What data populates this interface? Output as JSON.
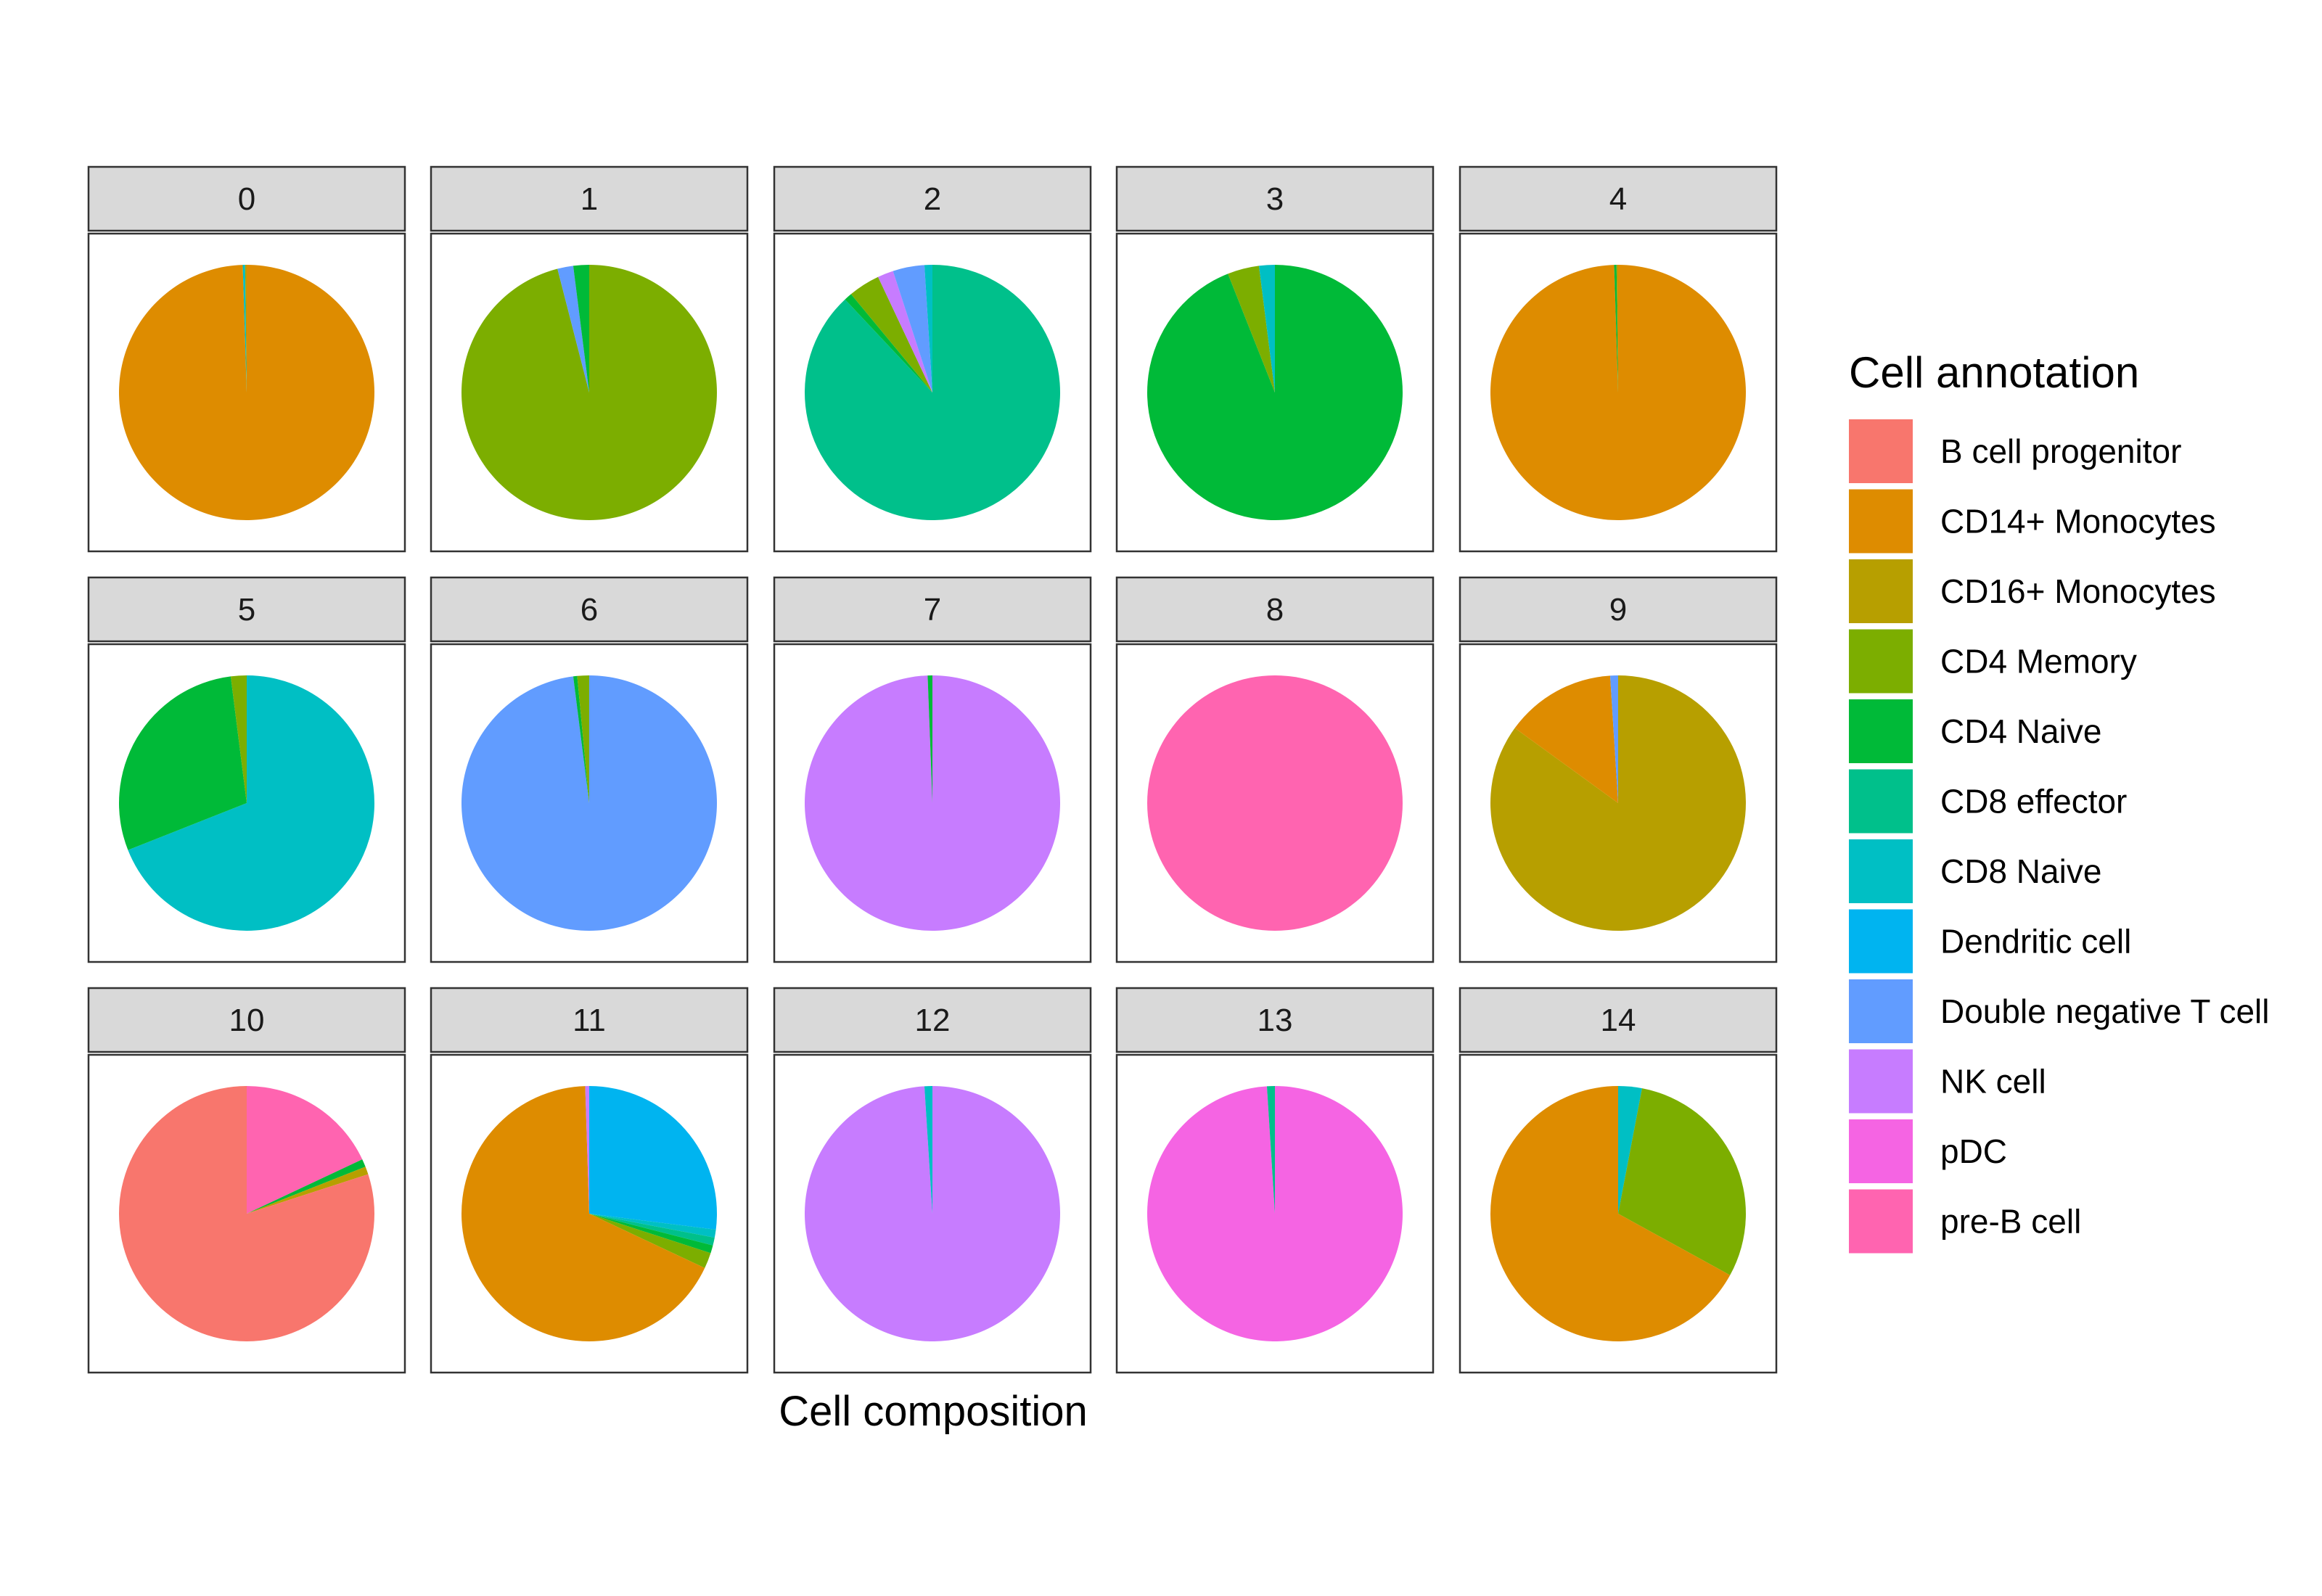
{
  "chart_data": {
    "type": "pie",
    "xlabel": "Cell composition",
    "legend": {
      "title": "Cell annotation",
      "placement": "right",
      "categories": [
        {
          "name": "B cell progenitor",
          "color": "#F8766D"
        },
        {
          "name": "CD14+ Monocytes",
          "color": "#DE8C00"
        },
        {
          "name": "CD16+ Monocytes",
          "color": "#B79F00"
        },
        {
          "name": "CD4 Memory",
          "color": "#7CAE00"
        },
        {
          "name": "CD4 Naive",
          "color": "#00BA38"
        },
        {
          "name": "CD8 effector",
          "color": "#00C08B"
        },
        {
          "name": "CD8 Naive",
          "color": "#00BFC4"
        },
        {
          "name": "Dendritic cell",
          "color": "#00B4F0"
        },
        {
          "name": "Double negative T cell",
          "color": "#619CFF"
        },
        {
          "name": "NK cell",
          "color": "#C77CFF"
        },
        {
          "name": "pDC",
          "color": "#F564E3"
        },
        {
          "name": "pre-B cell",
          "color": "#FF64B0"
        }
      ]
    },
    "panels": [
      {
        "label": "0",
        "slices": [
          {
            "category": "CD14+ Monocytes",
            "fraction": 0.995
          },
          {
            "category": "CD8 Naive",
            "fraction": 0.003
          },
          {
            "category": "CD16+ Monocytes",
            "fraction": 0.002
          }
        ]
      },
      {
        "label": "1",
        "slices": [
          {
            "category": "CD4 Memory",
            "fraction": 0.96
          },
          {
            "category": "Double negative T cell",
            "fraction": 0.02
          },
          {
            "category": "CD4 Naive",
            "fraction": 0.02
          }
        ]
      },
      {
        "label": "2",
        "slices": [
          {
            "category": "CD8 effector",
            "fraction": 0.88
          },
          {
            "category": "CD4 Naive",
            "fraction": 0.01
          },
          {
            "category": "CD4 Memory",
            "fraction": 0.04
          },
          {
            "category": "NK cell",
            "fraction": 0.02
          },
          {
            "category": "Double negative T cell",
            "fraction": 0.04
          },
          {
            "category": "CD8 Naive",
            "fraction": 0.01
          }
        ]
      },
      {
        "label": "3",
        "slices": [
          {
            "category": "CD4 Naive",
            "fraction": 0.94
          },
          {
            "category": "CD4 Memory",
            "fraction": 0.04
          },
          {
            "category": "CD8 Naive",
            "fraction": 0.02
          }
        ]
      },
      {
        "label": "4",
        "slices": [
          {
            "category": "CD14+ Monocytes",
            "fraction": 0.995
          },
          {
            "category": "CD4 Naive",
            "fraction": 0.003
          },
          {
            "category": "CD16+ Monocytes",
            "fraction": 0.002
          }
        ]
      },
      {
        "label": "5",
        "slices": [
          {
            "category": "CD8 Naive",
            "fraction": 0.69
          },
          {
            "category": "CD4 Naive",
            "fraction": 0.29
          },
          {
            "category": "CD4 Memory",
            "fraction": 0.02
          }
        ]
      },
      {
        "label": "6",
        "slices": [
          {
            "category": "Double negative T cell",
            "fraction": 0.98
          },
          {
            "category": "CD4 Naive",
            "fraction": 0.005
          },
          {
            "category": "CD4 Memory",
            "fraction": 0.015
          }
        ]
      },
      {
        "label": "7",
        "slices": [
          {
            "category": "NK cell",
            "fraction": 0.994
          },
          {
            "category": "CD4 Naive",
            "fraction": 0.006
          }
        ]
      },
      {
        "label": "8",
        "slices": [
          {
            "category": "pre-B cell",
            "fraction": 1.0
          }
        ]
      },
      {
        "label": "9",
        "slices": [
          {
            "category": "CD16+ Monocytes",
            "fraction": 0.85
          },
          {
            "category": "CD14+ Monocytes",
            "fraction": 0.14
          },
          {
            "category": "Double negative T cell",
            "fraction": 0.01
          }
        ]
      },
      {
        "label": "10",
        "slices": [
          {
            "category": "pre-B cell",
            "fraction": 0.18
          },
          {
            "category": "CD4 Naive",
            "fraction": 0.01
          },
          {
            "category": "CD16+ Monocytes",
            "fraction": 0.01
          },
          {
            "category": "B cell progenitor",
            "fraction": 0.8
          }
        ]
      },
      {
        "label": "11",
        "slices": [
          {
            "category": "Dendritic cell",
            "fraction": 0.27
          },
          {
            "category": "CD8 Naive",
            "fraction": 0.01
          },
          {
            "category": "CD8 effector",
            "fraction": 0.01
          },
          {
            "category": "CD4 Naive",
            "fraction": 0.01
          },
          {
            "category": "CD4 Memory",
            "fraction": 0.02
          },
          {
            "category": "CD14+ Monocytes",
            "fraction": 0.675
          },
          {
            "category": "NK cell",
            "fraction": 0.005
          }
        ]
      },
      {
        "label": "12",
        "slices": [
          {
            "category": "NK cell",
            "fraction": 0.99
          },
          {
            "category": "CD8 Naive",
            "fraction": 0.01
          }
        ]
      },
      {
        "label": "13",
        "slices": [
          {
            "category": "pDC",
            "fraction": 0.99
          },
          {
            "category": "CD8 effector",
            "fraction": 0.01
          }
        ]
      },
      {
        "label": "14",
        "slices": [
          {
            "category": "CD8 Naive",
            "fraction": 0.03
          },
          {
            "category": "CD4 Memory",
            "fraction": 0.3
          },
          {
            "category": "CD14+ Monocytes",
            "fraction": 0.67
          }
        ]
      }
    ]
  }
}
